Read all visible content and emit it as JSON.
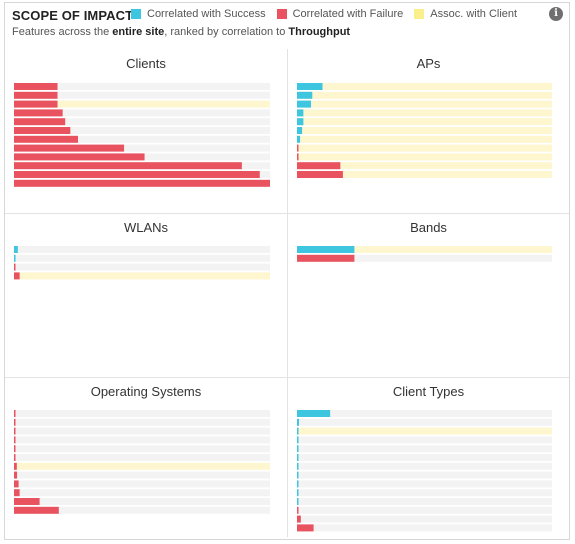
{
  "header": {
    "title": "SCOPE OF IMPACT",
    "subtitle_prefix": "Features across the ",
    "subtitle_scope": "entire site",
    "subtitle_mid": ", ranked by correlation to ",
    "subtitle_metric": "Throughput",
    "info_icon": "i"
  },
  "legend": [
    {
      "label": "Correlated with Success",
      "color": "#3ec6e0"
    },
    {
      "label": "Correlated with Failure",
      "color": "#e8535f"
    },
    {
      "label": "Assoc. with Client",
      "color": "#fbef8c"
    }
  ],
  "colors": {
    "success": "#3ec6e0",
    "failure": "#e8535f",
    "assoc": "#fdf6cf",
    "track": "#f3f3f3"
  },
  "chart_data": [
    {
      "type": "bar",
      "title": "Clients",
      "orientation": "horizontal",
      "xlim": [
        0,
        1
      ],
      "rows": [
        {
          "kind": "failure",
          "value": 0.17,
          "assoc": 0
        },
        {
          "kind": "failure",
          "value": 0.17,
          "assoc": 0
        },
        {
          "kind": "failure",
          "value": 0.17,
          "assoc": 1
        },
        {
          "kind": "failure",
          "value": 0.19,
          "assoc": 0
        },
        {
          "kind": "failure",
          "value": 0.2,
          "assoc": 0
        },
        {
          "kind": "failure",
          "value": 0.22,
          "assoc": 0
        },
        {
          "kind": "failure",
          "value": 0.25,
          "assoc": 0
        },
        {
          "kind": "failure",
          "value": 0.43,
          "assoc": 0
        },
        {
          "kind": "failure",
          "value": 0.51,
          "assoc": 0
        },
        {
          "kind": "failure",
          "value": 0.89,
          "assoc": 0
        },
        {
          "kind": "failure",
          "value": 0.96,
          "assoc": 0
        },
        {
          "kind": "failure",
          "value": 1.0,
          "assoc": 0
        }
      ]
    },
    {
      "type": "bar",
      "title": "APs",
      "orientation": "horizontal",
      "xlim": [
        0,
        1
      ],
      "rows": [
        {
          "kind": "success",
          "value": 0.1,
          "assoc": 1
        },
        {
          "kind": "success",
          "value": 0.06,
          "assoc": 1
        },
        {
          "kind": "success",
          "value": 0.055,
          "assoc": 1
        },
        {
          "kind": "success",
          "value": 0.025,
          "assoc": 1
        },
        {
          "kind": "success",
          "value": 0.025,
          "assoc": 1
        },
        {
          "kind": "success",
          "value": 0.02,
          "assoc": 1
        },
        {
          "kind": "success",
          "value": 0.012,
          "assoc": 1
        },
        {
          "kind": "failure",
          "value": 0.005,
          "assoc": 1
        },
        {
          "kind": "failure",
          "value": 0.005,
          "assoc": 1
        },
        {
          "kind": "failure",
          "value": 0.17,
          "assoc": 1
        },
        {
          "kind": "failure",
          "value": 0.18,
          "assoc": 1
        }
      ]
    },
    {
      "type": "bar",
      "title": "WLANs",
      "orientation": "horizontal",
      "xlim": [
        0,
        1
      ],
      "rows": [
        {
          "kind": "success",
          "value": 0.015,
          "assoc": 0
        },
        {
          "kind": "success",
          "value": 0.006,
          "assoc": 0
        },
        {
          "kind": "failure",
          "value": 0.005,
          "assoc": 0
        },
        {
          "kind": "failure",
          "value": 0.022,
          "assoc": 1
        }
      ]
    },
    {
      "type": "bar",
      "title": "Bands",
      "orientation": "horizontal",
      "xlim": [
        0,
        1
      ],
      "rows": [
        {
          "kind": "success",
          "value": 0.225,
          "assoc": 1
        },
        {
          "kind": "failure",
          "value": 0.225,
          "assoc": 0
        }
      ]
    },
    {
      "type": "bar",
      "title": "Operating Systems",
      "orientation": "horizontal",
      "xlim": [
        0,
        1
      ],
      "rows": [
        {
          "kind": "failure",
          "value": 0.004,
          "assoc": 0
        },
        {
          "kind": "failure",
          "value": 0.004,
          "assoc": 0
        },
        {
          "kind": "failure",
          "value": 0.004,
          "assoc": 0
        },
        {
          "kind": "failure",
          "value": 0.004,
          "assoc": 0
        },
        {
          "kind": "failure",
          "value": 0.005,
          "assoc": 0
        },
        {
          "kind": "failure",
          "value": 0.005,
          "assoc": 0
        },
        {
          "kind": "failure",
          "value": 0.011,
          "assoc": 1
        },
        {
          "kind": "failure",
          "value": 0.012,
          "assoc": 0
        },
        {
          "kind": "failure",
          "value": 0.018,
          "assoc": 0
        },
        {
          "kind": "failure",
          "value": 0.022,
          "assoc": 0
        },
        {
          "kind": "failure",
          "value": 0.1,
          "assoc": 0
        },
        {
          "kind": "failure",
          "value": 0.175,
          "assoc": 0
        }
      ]
    },
    {
      "type": "bar",
      "title": "Client Types",
      "orientation": "horizontal",
      "xlim": [
        0,
        1
      ],
      "rows": [
        {
          "kind": "success",
          "value": 0.13,
          "assoc": 0
        },
        {
          "kind": "success",
          "value": 0.008,
          "assoc": 0
        },
        {
          "kind": "success",
          "value": 0.006,
          "assoc": 1
        },
        {
          "kind": "success",
          "value": 0.004,
          "assoc": 0
        },
        {
          "kind": "success",
          "value": 0.004,
          "assoc": 0
        },
        {
          "kind": "success",
          "value": 0.003,
          "assoc": 0
        },
        {
          "kind": "success",
          "value": 0.003,
          "assoc": 0
        },
        {
          "kind": "success",
          "value": 0.003,
          "assoc": 0
        },
        {
          "kind": "success",
          "value": 0.003,
          "assoc": 0
        },
        {
          "kind": "success",
          "value": 0.003,
          "assoc": 0
        },
        {
          "kind": "success",
          "value": 0.003,
          "assoc": 0
        },
        {
          "kind": "failure",
          "value": 0.003,
          "assoc": 0
        },
        {
          "kind": "failure",
          "value": 0.015,
          "assoc": 0
        },
        {
          "kind": "failure",
          "value": 0.065,
          "assoc": 0
        }
      ]
    }
  ]
}
